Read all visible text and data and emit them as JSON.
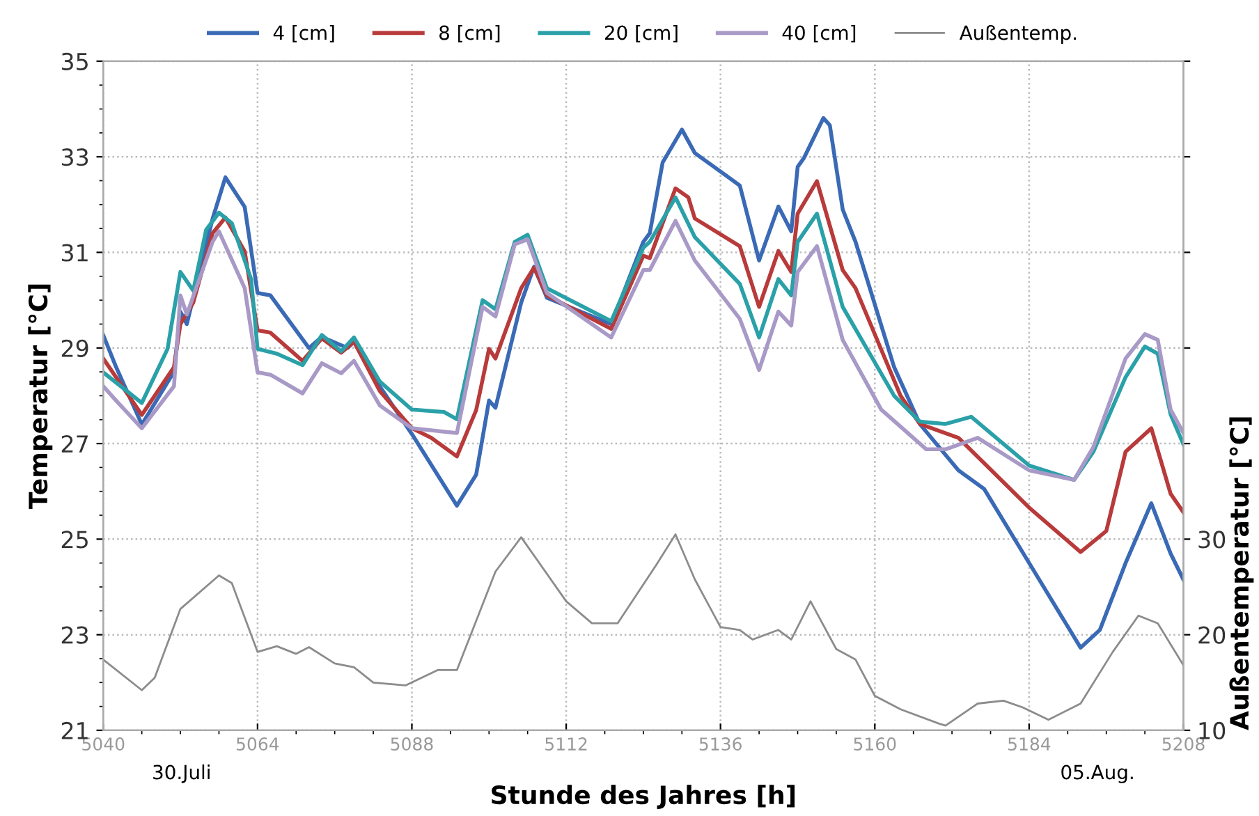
{
  "chart_data": {
    "type": "line",
    "xlabel": "Stunde des Jahres [h]",
    "ylabel": "Temperatur [°C]",
    "y2label": "Außentemperatur [°C]",
    "xlim": [
      5040,
      5208
    ],
    "xticks": [
      5040,
      5064,
      5088,
      5112,
      5136,
      5160,
      5184,
      5208
    ],
    "ylim": [
      21,
      35
    ],
    "yticks": [
      21,
      23,
      25,
      27,
      29,
      31,
      33,
      35
    ],
    "y2lim": [
      10,
      80
    ],
    "y2ticks": [
      10,
      20,
      30,
      {
        "value": 40,
        "label": null
      },
      {
        "value": 50,
        "label": null
      },
      {
        "value": 60,
        "label": null
      },
      {
        "value": 70,
        "label": null
      },
      {
        "value": 80,
        "label": null
      }
    ],
    "grid": true,
    "legend": "top",
    "marker": "none",
    "line_style": "solid",
    "annotations": [
      "30.Juli",
      "05.Aug."
    ],
    "series": [
      {
        "name": "4 [cm]",
        "color": "#3a6ab5",
        "x": [
          5040,
          5042,
          5046,
          5051,
          5052,
          5053,
          5057,
          5059,
          5062,
          5064,
          5066,
          5072,
          5074,
          5078,
          5079,
          5083,
          5088,
          5095,
          5098,
          5100,
          5101,
          5105,
          5107,
          5109,
          5119,
          5124,
          5125,
          5127,
          5130,
          5132,
          5139,
          5142,
          5145,
          5147,
          5148,
          5149,
          5152,
          5153,
          5155,
          5157,
          5163,
          5167,
          5173,
          5177,
          5184,
          5192,
          5195,
          5199,
          5203,
          5206,
          5208
        ],
        "values": [
          29.27,
          28.6,
          27.4,
          28.5,
          29.76,
          29.5,
          31.7,
          32.57,
          31.95,
          30.15,
          30.1,
          29.0,
          29.23,
          29.0,
          29.13,
          28.2,
          27.2,
          25.7,
          26.35,
          27.9,
          27.75,
          29.95,
          30.7,
          30.05,
          29.5,
          31.22,
          31.4,
          32.88,
          33.57,
          33.08,
          32.4,
          30.83,
          31.96,
          31.44,
          32.79,
          32.98,
          33.81,
          33.66,
          31.9,
          31.22,
          28.6,
          27.41,
          26.44,
          26.05,
          24.5,
          22.73,
          23.1,
          24.5,
          25.75,
          24.7,
          24.15
        ]
      },
      {
        "name": "8 [cm]",
        "color": "#b83a3a",
        "x": [
          5040,
          5046,
          5051,
          5052,
          5054,
          5057,
          5059,
          5062,
          5064,
          5066,
          5071,
          5074,
          5077,
          5079,
          5083,
          5088,
          5091,
          5095,
          5098,
          5100,
          5101,
          5105,
          5107,
          5109,
          5119,
          5124,
          5125,
          5129,
          5131,
          5132,
          5139,
          5142,
          5145,
          5147,
          5148,
          5151,
          5155,
          5157,
          5164,
          5167,
          5173,
          5184,
          5192,
          5196,
          5199,
          5203,
          5206,
          5208
        ],
        "values": [
          28.78,
          27.6,
          28.6,
          29.5,
          29.95,
          31.4,
          31.73,
          31.02,
          29.37,
          29.32,
          28.73,
          29.2,
          28.9,
          29.13,
          28.1,
          27.32,
          27.12,
          26.73,
          27.7,
          28.98,
          28.78,
          30.25,
          30.68,
          30.1,
          29.4,
          30.93,
          30.88,
          32.34,
          32.15,
          31.71,
          31.13,
          29.86,
          31.03,
          30.59,
          31.81,
          32.49,
          30.63,
          30.25,
          28.0,
          27.41,
          27.12,
          25.66,
          24.73,
          25.17,
          26.83,
          27.32,
          25.95,
          25.56
        ]
      },
      {
        "name": "20 [cm]",
        "color": "#2aa0a8",
        "x": [
          5040,
          5046,
          5050,
          5052,
          5054,
          5056,
          5058,
          5060,
          5063,
          5064,
          5067,
          5071,
          5074,
          5077,
          5079,
          5083,
          5088,
          5093,
          5095,
          5099,
          5101,
          5104,
          5106,
          5109,
          5119,
          5124,
          5125,
          5129,
          5132,
          5139,
          5142,
          5145,
          5147,
          5148,
          5151,
          5155,
          5163,
          5167,
          5171,
          5175,
          5184,
          5191,
          5194,
          5199,
          5202,
          5204,
          5206,
          5208
        ],
        "values": [
          28.49,
          27.85,
          28.98,
          30.59,
          30.2,
          31.47,
          31.83,
          31.61,
          30.44,
          28.98,
          28.88,
          28.64,
          29.27,
          28.93,
          29.22,
          28.3,
          27.71,
          27.66,
          27.51,
          30.0,
          29.81,
          31.22,
          31.37,
          30.25,
          29.56,
          31.1,
          31.22,
          32.15,
          31.32,
          30.34,
          29.22,
          30.44,
          30.1,
          31.22,
          31.81,
          29.86,
          28.0,
          27.46,
          27.41,
          27.56,
          26.54,
          26.24,
          26.83,
          28.39,
          29.03,
          28.88,
          27.61,
          26.98
        ]
      },
      {
        "name": "40 [cm]",
        "color": "#a899c7",
        "x": [
          5040,
          5042,
          5046,
          5051,
          5052,
          5053,
          5057,
          5058,
          5062,
          5064,
          5066,
          5071,
          5074,
          5077,
          5079,
          5083,
          5088,
          5095,
          5099,
          5101,
          5104,
          5106,
          5109,
          5119,
          5124,
          5125,
          5129,
          5132,
          5139,
          5142,
          5145,
          5147,
          5148,
          5151,
          5155,
          5161,
          5168,
          5171,
          5176,
          5184,
          5191,
          5194,
          5199,
          5202,
          5204,
          5206,
          5208
        ],
        "values": [
          28.2,
          27.9,
          27.32,
          28.2,
          30.1,
          29.7,
          31.22,
          31.44,
          30.25,
          28.49,
          28.44,
          28.05,
          28.68,
          28.47,
          28.73,
          27.8,
          27.32,
          27.22,
          29.86,
          29.66,
          31.17,
          31.27,
          30.15,
          29.22,
          30.63,
          30.63,
          31.66,
          30.83,
          29.61,
          28.54,
          29.76,
          29.47,
          30.59,
          31.13,
          29.17,
          27.71,
          26.88,
          26.88,
          27.12,
          26.44,
          26.24,
          26.93,
          28.78,
          29.29,
          29.17,
          27.71,
          27.22
        ]
      },
      {
        "name": "Außentemp.",
        "color": "#8c8c8c",
        "axis": "y2",
        "x": [
          5040,
          5046,
          5048,
          5052,
          5058,
          5060,
          5064,
          5067,
          5070,
          5072,
          5076,
          5079,
          5082,
          5087,
          5092,
          5095,
          5101,
          5105,
          5112,
          5116,
          5120,
          5126,
          5129,
          5132,
          5136,
          5139,
          5141,
          5145,
          5147,
          5150,
          5154,
          5157,
          5160,
          5164,
          5170,
          5171,
          5176,
          5180,
          5183,
          5187,
          5192,
          5197,
          5201,
          5204,
          5208
        ],
        "values": [
          17.4,
          14.2,
          15.5,
          22.7,
          26.2,
          25.4,
          18.2,
          18.8,
          18.0,
          18.7,
          17.0,
          16.6,
          15.0,
          14.7,
          16.3,
          16.3,
          26.6,
          30.2,
          23.5,
          21.2,
          21.2,
          27.3,
          30.5,
          25.8,
          20.8,
          20.5,
          19.5,
          20.5,
          19.5,
          23.5,
          18.5,
          17.4,
          13.6,
          12.2,
          10.7,
          10.5,
          12.8,
          13.1,
          12.4,
          11.1,
          12.8,
          18.2,
          22.0,
          21.2,
          16.8
        ]
      }
    ]
  }
}
